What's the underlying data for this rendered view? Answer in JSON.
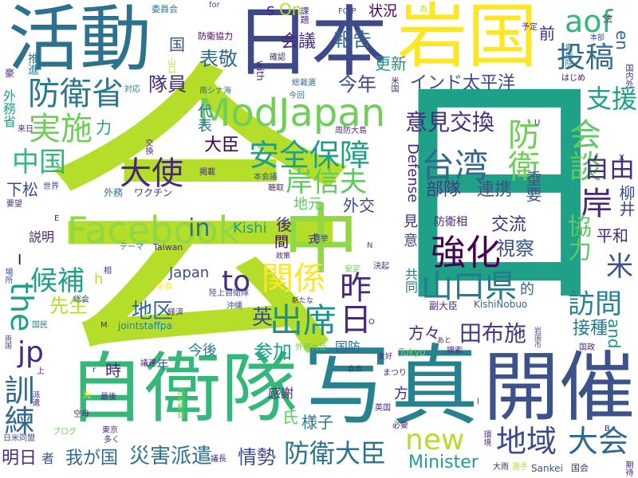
{
  "words": [
    {
      "text": "会",
      "color": "#b5de2b"
    },
    {
      "text": "日",
      "color": "#1fa187"
    },
    {
      "text": "日本",
      "color": "#3e4989"
    },
    {
      "text": "岩国",
      "color": "#fde725"
    },
    {
      "text": "活動",
      "color": "#2c728e"
    },
    {
      "text": "自衛隊",
      "color": "#35b779"
    },
    {
      "text": "写真",
      "color": "#26828e"
    },
    {
      "text": "開催",
      "color": "#3b528b"
    },
    {
      "text": "中",
      "color": "#90d743"
    },
    {
      "text": "ModJapan",
      "color": "#6ece58"
    },
    {
      "text": "Facebook",
      "color": "#90d743"
    },
    {
      "text": "安全保障",
      "color": "#1f9e89"
    },
    {
      "text": "台湾",
      "color": "#31688e"
    },
    {
      "text": "防衛",
      "color": "#6ece58"
    },
    {
      "text": "強化",
      "color": "#440154"
    },
    {
      "text": "山口県",
      "color": "#2a788e"
    },
    {
      "text": "昨日",
      "color": "#482878"
    },
    {
      "text": "関係",
      "color": "#fde725"
    },
    {
      "text": "出席",
      "color": "#21918c"
    },
    {
      "text": "大使",
      "color": "#482878"
    },
    {
      "text": "岸信夫",
      "color": "#5ec962"
    },
    {
      "text": "防衛省",
      "color": "#2a788e"
    },
    {
      "text": "実施",
      "color": "#6ece58"
    },
    {
      "text": "中国",
      "color": "#35b779"
    },
    {
      "text": "候補",
      "color": "#1f9e89"
    },
    {
      "text": "訓練",
      "color": "#31688e"
    },
    {
      "text": "会談",
      "color": "#5ec962"
    },
    {
      "text": "投稿",
      "color": "#31688e"
    },
    {
      "text": "支援",
      "color": "#1f9e89"
    },
    {
      "text": "自由",
      "color": "#472d7b"
    },
    {
      "text": "岸",
      "color": "#482878"
    },
    {
      "text": "米",
      "color": "#3b528b"
    },
    {
      "text": "訪問",
      "color": "#26828e"
    },
    {
      "text": "地域",
      "color": "#3e4989"
    },
    {
      "text": "大会",
      "color": "#31688e"
    },
    {
      "text": "防衛大臣",
      "color": "#2c728e"
    },
    {
      "text": "new",
      "color": "#b5de2b"
    },
    {
      "text": "意見交換",
      "color": "#472d7b"
    },
    {
      "text": "インド太平洋",
      "color": "#3e4989"
    },
    {
      "text": "aof",
      "color": "#35b779"
    },
    {
      "text": "the",
      "color": "#1f9e89"
    },
    {
      "text": "jp",
      "color": "#482878"
    },
    {
      "text": "to",
      "color": "#472d7b"
    },
    {
      "text": "in",
      "color": "#2c728e"
    },
    {
      "text": "災害派遣",
      "color": "#2c728e"
    },
    {
      "text": "情勢",
      "color": "#3e4989"
    },
    {
      "text": "我が国",
      "color": "#31688e"
    },
    {
      "text": "明日",
      "color": "#472d7b"
    },
    {
      "text": "Minister",
      "color": "#1f9e89"
    },
    {
      "text": "田布施",
      "color": "#443983"
    },
    {
      "text": "方々",
      "color": "#482878"
    },
    {
      "text": "協力",
      "color": "#5ec962"
    },
    {
      "text": "視察",
      "color": "#3b528b"
    },
    {
      "text": "交流",
      "color": "#472d7b"
    },
    {
      "text": "平和",
      "color": "#482878"
    },
    {
      "text": "柳井",
      "color": "#3e4989"
    },
    {
      "text": "接種",
      "color": "#2a788e"
    },
    {
      "text": "and",
      "color": "#21918c"
    },
    {
      "text": "先生",
      "color": "#b5de2b"
    },
    {
      "text": "地区",
      "color": "#31688e"
    },
    {
      "text": "英",
      "color": "#3b528b"
    },
    {
      "text": "参加",
      "color": "#1f9e89"
    },
    {
      "text": "報告",
      "color": "#31688e"
    },
    {
      "text": "今年",
      "color": "#3e4989"
    },
    {
      "text": "更新",
      "color": "#21918c"
    },
    {
      "text": "表敬",
      "color": "#31688e"
    },
    {
      "text": "会議",
      "color": "#472d7b"
    },
    {
      "text": "隊員",
      "color": "#482878"
    },
    {
      "text": "大臣",
      "color": "#440154"
    },
    {
      "text": "外交",
      "color": "#3e4989"
    },
    {
      "text": "部隊",
      "color": "#443983"
    },
    {
      "text": "連携",
      "color": "#3b528b"
    },
    {
      "text": "重要",
      "color": "#3b528b"
    },
    {
      "text": "Defense",
      "color": "#482878"
    },
    {
      "text": "Kishi",
      "color": "#1f9e89"
    },
    {
      "text": "Japan",
      "color": "#3e4989"
    },
    {
      "text": "jointstaffpa",
      "color": "#26828e"
    },
    {
      "text": "KishiNobuo",
      "color": "#31688e"
    },
    {
      "text": "Taiwan",
      "color": "#472d7b"
    },
    {
      "text": "Sankei",
      "color": "#3b528b"
    },
    {
      "text": "Tokyo",
      "color": "#6ece58"
    },
    {
      "text": "On",
      "color": "#b5de2b"
    },
    {
      "text": "s",
      "color": "#482878"
    },
    {
      "text": "en",
      "color": "#31688e"
    },
    {
      "text": "前",
      "color": "#472d7b"
    },
    {
      "text": "国",
      "color": "#3b528b"
    },
    {
      "text": "状況",
      "color": "#440154"
    },
    {
      "text": "力",
      "color": "#1f9e89"
    },
    {
      "text": "代表",
      "color": "#2a788e"
    },
    {
      "text": "下松",
      "color": "#3e4989"
    },
    {
      "text": "説明",
      "color": "#482878"
    },
    {
      "text": "後",
      "color": "#482878"
    },
    {
      "text": "間",
      "color": "#440154"
    },
    {
      "text": "地元",
      "color": "#5ec962"
    },
    {
      "text": "防衛相",
      "color": "#482878"
    },
    {
      "text": "的",
      "color": "#31688e"
    },
    {
      "text": "見",
      "color": "#472d7b"
    },
    {
      "text": "意",
      "color": "#3e4989"
    },
    {
      "text": "共同",
      "color": "#2c728e"
    },
    {
      "text": "副大臣",
      "color": "#482878"
    },
    {
      "text": "式",
      "color": "#482878"
    },
    {
      "text": "国防",
      "color": "#31688e"
    },
    {
      "text": "感謝",
      "color": "#482878"
    },
    {
      "text": "様子",
      "color": "#2a788e"
    },
    {
      "text": "方",
      "color": "#482878"
    },
    {
      "text": "氏",
      "color": "#5ec962"
    },
    {
      "text": "今後",
      "color": "#2a788e"
    },
    {
      "text": "時",
      "color": "#482878"
    },
    {
      "text": "年",
      "color": "#31688e"
    },
    {
      "text": "者",
      "color": "#3b528b"
    },
    {
      "text": "h",
      "color": "#b5de2b"
    },
    {
      "text": "I",
      "color": "#440154"
    },
    {
      "text": "for",
      "color": "#3b528b"
    },
    {
      "text": "with",
      "color": "#482878"
    },
    {
      "text": "委員会",
      "color": "#2a788e"
    },
    {
      "text": "防衛協力",
      "color": "#440154"
    },
    {
      "text": "課題",
      "color": "#482878"
    },
    {
      "text": "FOIP",
      "color": "#3b528b"
    },
    {
      "text": "為",
      "color": "#b5de2b"
    },
    {
      "text": "予定",
      "color": "#482878"
    },
    {
      "text": "法",
      "color": "#3e4989"
    },
    {
      "text": "南シナ海",
      "color": "#2c728e"
    },
    {
      "text": "総裁選",
      "color": "#31688e"
    },
    {
      "text": "確認",
      "color": "#482878"
    },
    {
      "text": "今回",
      "color": "#31688e"
    },
    {
      "text": "外務省",
      "color": "#1f9e89"
    },
    {
      "text": "推進",
      "color": "#26828e"
    },
    {
      "text": "対応",
      "color": "#26828e"
    },
    {
      "text": "来日",
      "color": "#482878"
    },
    {
      "text": "外務",
      "color": "#2c728e"
    },
    {
      "text": "ワクチン",
      "color": "#482878"
    },
    {
      "text": "世界",
      "color": "#3e4989"
    },
    {
      "text": "要望",
      "color": "#482878"
    },
    {
      "text": "交換",
      "color": "#482878"
    },
    {
      "text": "掲載",
      "color": "#482878"
    },
    {
      "text": "本会議",
      "color": "#3b528b"
    },
    {
      "text": "聴取",
      "color": "#482878"
    },
    {
      "text": "周防大島",
      "color": "#472d7b"
    },
    {
      "text": "米国",
      "color": "#482878"
    },
    {
      "text": "はじめ",
      "color": "#440154"
    },
    {
      "text": "本部",
      "color": "#3e4989"
    },
    {
      "text": "テーマ",
      "color": "#2c728e"
    },
    {
      "text": "選挙",
      "color": "#3e4989"
    },
    {
      "text": "政策",
      "color": "#482878"
    },
    {
      "text": "安定",
      "color": "#6ece58"
    },
    {
      "text": "決起",
      "color": "#482878"
    },
    {
      "text": "陸上自衛隊",
      "color": "#3e4989"
    },
    {
      "text": "沖縄",
      "color": "#3b528b"
    },
    {
      "text": "新たな",
      "color": "#482878"
    },
    {
      "text": "経済",
      "color": "#482878"
    },
    {
      "text": "全員",
      "color": "#fde725"
    },
    {
      "text": "相",
      "color": "#482878"
    },
    {
      "text": "総会",
      "color": "#3b528b"
    },
    {
      "text": "場所",
      "color": "#3b528b"
    },
    {
      "text": "国民",
      "color": "#26828e"
    },
    {
      "text": "両国",
      "color": "#3e4989"
    },
    {
      "text": "外務大臣",
      "color": "#6ece58"
    },
    {
      "text": "あと",
      "color": "#482878"
    },
    {
      "text": "搜索",
      "color": "#482878"
    },
    {
      "text": "岩国市",
      "color": "#3b528b"
    },
    {
      "text": "国政",
      "color": "#482878"
    },
    {
      "text": "議連",
      "color": "#482878"
    },
    {
      "text": "友好",
      "color": "#482878"
    },
    {
      "text": "まつり",
      "color": "#482878"
    },
    {
      "text": "会合",
      "color": "#482878"
    },
    {
      "text": "英国",
      "color": "#482878"
    },
    {
      "text": "必要",
      "color": "#482878"
    },
    {
      "text": "環境",
      "color": "#482878"
    },
    {
      "text": "大雨",
      "color": "#482878"
    },
    {
      "text": "選手",
      "color": "#b5de2b"
    },
    {
      "text": "国会",
      "color": "#482878"
    },
    {
      "text": "期待",
      "color": "#482878"
    },
    {
      "text": "空母",
      "color": "#482878"
    },
    {
      "text": "ブログ",
      "color": "#6ece58"
    },
    {
      "text": "東京",
      "color": "#482878"
    },
    {
      "text": "多く",
      "color": "#482878"
    },
    {
      "text": "議長",
      "color": "#482878"
    },
    {
      "text": "派遣",
      "color": "#482878"
    },
    {
      "text": "日米同盟",
      "color": "#3e4989"
    },
    {
      "text": "高校野球",
      "color": "#6ece58"
    },
    {
      "text": "最後",
      "color": "#482878"
    },
    {
      "text": "光",
      "color": "#fde725"
    },
    {
      "text": "豪",
      "color": "#482878"
    },
    {
      "text": "山口",
      "color": "#b5de2b"
    },
    {
      "text": "衆議院",
      "color": "#26828e"
    },
    {
      "text": "国内外",
      "color": "#482878"
    },
    {
      "text": "E",
      "color": "#482878"
    },
    {
      "text": "M",
      "color": "#482878"
    },
    {
      "text": "N",
      "color": "#3b528b"
    },
    {
      "text": "O",
      "color": "#482878"
    },
    {
      "text": "r",
      "color": "#482878"
    },
    {
      "text": "l",
      "color": "#482878"
    },
    {
      "text": "U",
      "color": "#482878"
    },
    {
      "text": "X",
      "color": "#482878"
    },
    {
      "text": "B",
      "color": "#482878"
    },
    {
      "text": "上",
      "color": "#482878"
    }
  ]
}
